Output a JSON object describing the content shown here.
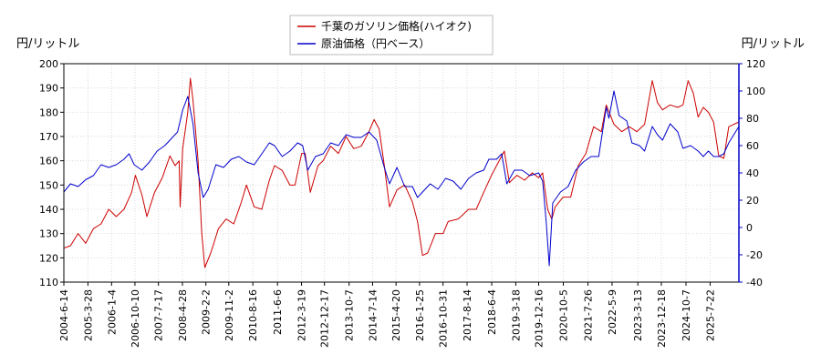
{
  "chart_data": {
    "type": "line",
    "y_left_label": "円/リットル",
    "y_right_label": "円/リットル",
    "y_left_ticks": [
      110,
      120,
      130,
      140,
      150,
      160,
      170,
      180,
      190,
      200
    ],
    "y_right_ticks": [
      -40,
      -20,
      0,
      20,
      40,
      60,
      80,
      100,
      120
    ],
    "y_left_range": [
      110,
      200
    ],
    "y_right_range": [
      -40,
      120
    ],
    "x_range": [
      "2004-06-14",
      "2026-06-30"
    ],
    "x_ticks": [
      "2004-6-14",
      "2005-3-28",
      "2006-1-4",
      "2006-10-10",
      "2007-7-17",
      "2008-4-28",
      "2009-2-2",
      "2009-11-2",
      "2010-8-16",
      "2011-6-6",
      "2012-3-19",
      "2012-12-17",
      "2013-10-7",
      "2014-7-14",
      "2015-4-20",
      "2016-1-25",
      "2016-10-31",
      "2017-8-14",
      "2018-6-4",
      "2019-3-18",
      "2019-12-16",
      "2020-10-5",
      "2021-7-26",
      "2022-5-9",
      "2023-3-13",
      "2023-12-18",
      "2024-10-7",
      "2025-7-22"
    ],
    "legend_position": "top-center",
    "grid": true,
    "series": [
      {
        "name": "千葉のガソリン価格(ハイオク)",
        "axis": "left",
        "color": "#cc0000",
        "points": [
          [
            "2004-06-14",
            124
          ],
          [
            "2004-09-01",
            125
          ],
          [
            "2004-12-01",
            130
          ],
          [
            "2005-03-01",
            126
          ],
          [
            "2005-06-01",
            132
          ],
          [
            "2005-09-01",
            134
          ],
          [
            "2005-12-01",
            140
          ],
          [
            "2006-03-01",
            137
          ],
          [
            "2006-06-01",
            140
          ],
          [
            "2006-09-01",
            147
          ],
          [
            "2006-10-15",
            154
          ],
          [
            "2007-01-01",
            146
          ],
          [
            "2007-03-01",
            137
          ],
          [
            "2007-06-01",
            147
          ],
          [
            "2007-09-01",
            153
          ],
          [
            "2007-12-01",
            162
          ],
          [
            "2008-02-01",
            158
          ],
          [
            "2008-03-20",
            160
          ],
          [
            "2008-04-01",
            141
          ],
          [
            "2008-05-01",
            165
          ],
          [
            "2008-07-01",
            180
          ],
          [
            "2008-08-01",
            194
          ],
          [
            "2008-09-01",
            185
          ],
          [
            "2008-11-01",
            160
          ],
          [
            "2008-12-15",
            130
          ],
          [
            "2009-01-20",
            116
          ],
          [
            "2009-04-01",
            122
          ],
          [
            "2009-07-01",
            132
          ],
          [
            "2009-10-01",
            136
          ],
          [
            "2010-01-01",
            134
          ],
          [
            "2010-04-01",
            143
          ],
          [
            "2010-06-01",
            150
          ],
          [
            "2010-09-01",
            141
          ],
          [
            "2010-12-01",
            140
          ],
          [
            "2011-03-01",
            152
          ],
          [
            "2011-05-01",
            158
          ],
          [
            "2011-08-01",
            156
          ],
          [
            "2011-11-01",
            150
          ],
          [
            "2012-01-01",
            150
          ],
          [
            "2012-03-20",
            163
          ],
          [
            "2012-05-01",
            163
          ],
          [
            "2012-07-01",
            147
          ],
          [
            "2012-10-01",
            158
          ],
          [
            "2012-12-01",
            160
          ],
          [
            "2013-03-01",
            166
          ],
          [
            "2013-06-01",
            163
          ],
          [
            "2013-09-01",
            170
          ],
          [
            "2013-12-01",
            165
          ],
          [
            "2014-03-01",
            166
          ],
          [
            "2014-06-01",
            172
          ],
          [
            "2014-08-01",
            177
          ],
          [
            "2014-10-01",
            173
          ],
          [
            "2014-12-01",
            158
          ],
          [
            "2015-02-01",
            141
          ],
          [
            "2015-05-01",
            148
          ],
          [
            "2015-08-01",
            150
          ],
          [
            "2015-11-01",
            143
          ],
          [
            "2016-01-01",
            135
          ],
          [
            "2016-03-01",
            121
          ],
          [
            "2016-05-01",
            122
          ],
          [
            "2016-08-01",
            130
          ],
          [
            "2016-11-01",
            130
          ],
          [
            "2017-01-01",
            135
          ],
          [
            "2017-05-01",
            136
          ],
          [
            "2017-09-01",
            140
          ],
          [
            "2017-12-01",
            140
          ],
          [
            "2018-03-01",
            147
          ],
          [
            "2018-06-01",
            154
          ],
          [
            "2018-09-01",
            160
          ],
          [
            "2018-11-01",
            164
          ],
          [
            "2019-01-01",
            151
          ],
          [
            "2019-04-01",
            154
          ],
          [
            "2019-07-01",
            152
          ],
          [
            "2019-10-01",
            155
          ],
          [
            "2019-12-16",
            153
          ],
          [
            "2020-02-01",
            155
          ],
          [
            "2020-04-01",
            140
          ],
          [
            "2020-05-20",
            136
          ],
          [
            "2020-07-01",
            141
          ],
          [
            "2020-10-01",
            145
          ],
          [
            "2021-01-01",
            145
          ],
          [
            "2021-04-01",
            158
          ],
          [
            "2021-07-01",
            163
          ],
          [
            "2021-10-01",
            174
          ],
          [
            "2022-01-01",
            172
          ],
          [
            "2022-03-01",
            183
          ],
          [
            "2022-06-01",
            175
          ],
          [
            "2022-09-01",
            172
          ],
          [
            "2022-12-01",
            174
          ],
          [
            "2023-03-01",
            172
          ],
          [
            "2023-06-01",
            175
          ],
          [
            "2023-09-01",
            193
          ],
          [
            "2023-11-01",
            184
          ],
          [
            "2024-01-01",
            181
          ],
          [
            "2024-04-01",
            183
          ],
          [
            "2024-07-01",
            182
          ],
          [
            "2024-09-01",
            183
          ],
          [
            "2024-11-01",
            193
          ],
          [
            "2025-01-01",
            188
          ],
          [
            "2025-03-01",
            178
          ],
          [
            "2025-05-01",
            182
          ],
          [
            "2025-07-01",
            180
          ],
          [
            "2025-09-01",
            176
          ],
          [
            "2025-11-01",
            162
          ],
          [
            "2026-01-01",
            161
          ],
          [
            "2026-03-01",
            174
          ],
          [
            "2026-06-30",
            176
          ]
        ]
      },
      {
        "name": "原油価格（円ベース）",
        "axis": "right",
        "color": "#0000cc",
        "points": [
          [
            "2004-06-14",
            26
          ],
          [
            "2004-09-01",
            32
          ],
          [
            "2004-12-01",
            30
          ],
          [
            "2005-03-01",
            35
          ],
          [
            "2005-06-01",
            38
          ],
          [
            "2005-09-01",
            46
          ],
          [
            "2005-12-01",
            44
          ],
          [
            "2006-03-01",
            46
          ],
          [
            "2006-06-01",
            50
          ],
          [
            "2006-08-01",
            54
          ],
          [
            "2006-10-01",
            46
          ],
          [
            "2007-01-01",
            42
          ],
          [
            "2007-04-01",
            48
          ],
          [
            "2007-07-01",
            56
          ],
          [
            "2007-10-01",
            60
          ],
          [
            "2007-12-01",
            64
          ],
          [
            "2008-03-01",
            70
          ],
          [
            "2008-05-01",
            86
          ],
          [
            "2008-07-01",
            96
          ],
          [
            "2008-09-01",
            76
          ],
          [
            "2008-11-01",
            40
          ],
          [
            "2009-01-01",
            22
          ],
          [
            "2009-03-01",
            28
          ],
          [
            "2009-06-01",
            46
          ],
          [
            "2009-09-01",
            44
          ],
          [
            "2009-12-01",
            50
          ],
          [
            "2010-03-01",
            52
          ],
          [
            "2010-06-01",
            48
          ],
          [
            "2010-09-01",
            46
          ],
          [
            "2010-12-01",
            54
          ],
          [
            "2011-03-01",
            62
          ],
          [
            "2011-05-01",
            60
          ],
          [
            "2011-08-01",
            52
          ],
          [
            "2011-11-01",
            56
          ],
          [
            "2012-02-01",
            62
          ],
          [
            "2012-04-01",
            60
          ],
          [
            "2012-06-01",
            42
          ],
          [
            "2012-09-01",
            52
          ],
          [
            "2012-12-01",
            54
          ],
          [
            "2013-03-01",
            62
          ],
          [
            "2013-06-01",
            60
          ],
          [
            "2013-09-01",
            68
          ],
          [
            "2013-12-01",
            66
          ],
          [
            "2014-03-01",
            66
          ],
          [
            "2014-06-01",
            70
          ],
          [
            "2014-09-01",
            64
          ],
          [
            "2014-12-01",
            44
          ],
          [
            "2015-02-01",
            32
          ],
          [
            "2015-05-01",
            44
          ],
          [
            "2015-08-01",
            30
          ],
          [
            "2015-11-01",
            30
          ],
          [
            "2016-01-01",
            22
          ],
          [
            "2016-03-01",
            26
          ],
          [
            "2016-06-01",
            32
          ],
          [
            "2016-09-01",
            28
          ],
          [
            "2016-12-01",
            36
          ],
          [
            "2017-03-01",
            34
          ],
          [
            "2017-06-01",
            28
          ],
          [
            "2017-09-01",
            36
          ],
          [
            "2017-12-01",
            40
          ],
          [
            "2018-03-01",
            42
          ],
          [
            "2018-05-01",
            50
          ],
          [
            "2018-08-01",
            50
          ],
          [
            "2018-10-01",
            54
          ],
          [
            "2018-12-01",
            32
          ],
          [
            "2019-03-01",
            42
          ],
          [
            "2019-06-01",
            42
          ],
          [
            "2019-09-01",
            38
          ],
          [
            "2019-12-16",
            40
          ],
          [
            "2020-02-01",
            34
          ],
          [
            "2020-03-15",
            4
          ],
          [
            "2020-04-20",
            -28
          ],
          [
            "2020-06-01",
            18
          ],
          [
            "2020-09-01",
            26
          ],
          [
            "2020-12-01",
            30
          ],
          [
            "2021-03-01",
            42
          ],
          [
            "2021-06-01",
            48
          ],
          [
            "2021-09-01",
            52
          ],
          [
            "2021-12-01",
            52
          ],
          [
            "2022-03-01",
            88
          ],
          [
            "2022-04-01",
            80
          ],
          [
            "2022-06-01",
            100
          ],
          [
            "2022-08-01",
            82
          ],
          [
            "2022-11-01",
            78
          ],
          [
            "2023-01-01",
            62
          ],
          [
            "2023-04-01",
            60
          ],
          [
            "2023-06-01",
            56
          ],
          [
            "2023-09-01",
            74
          ],
          [
            "2023-11-01",
            68
          ],
          [
            "2024-01-01",
            64
          ],
          [
            "2024-04-01",
            76
          ],
          [
            "2024-07-01",
            70
          ],
          [
            "2024-09-01",
            58
          ],
          [
            "2024-12-01",
            60
          ],
          [
            "2025-03-01",
            56
          ],
          [
            "2025-05-01",
            52
          ],
          [
            "2025-07-01",
            56
          ],
          [
            "2025-09-01",
            52
          ],
          [
            "2025-11-01",
            52
          ],
          [
            "2026-01-01",
            54
          ],
          [
            "2026-03-01",
            62
          ],
          [
            "2026-06-30",
            74
          ]
        ]
      }
    ]
  }
}
